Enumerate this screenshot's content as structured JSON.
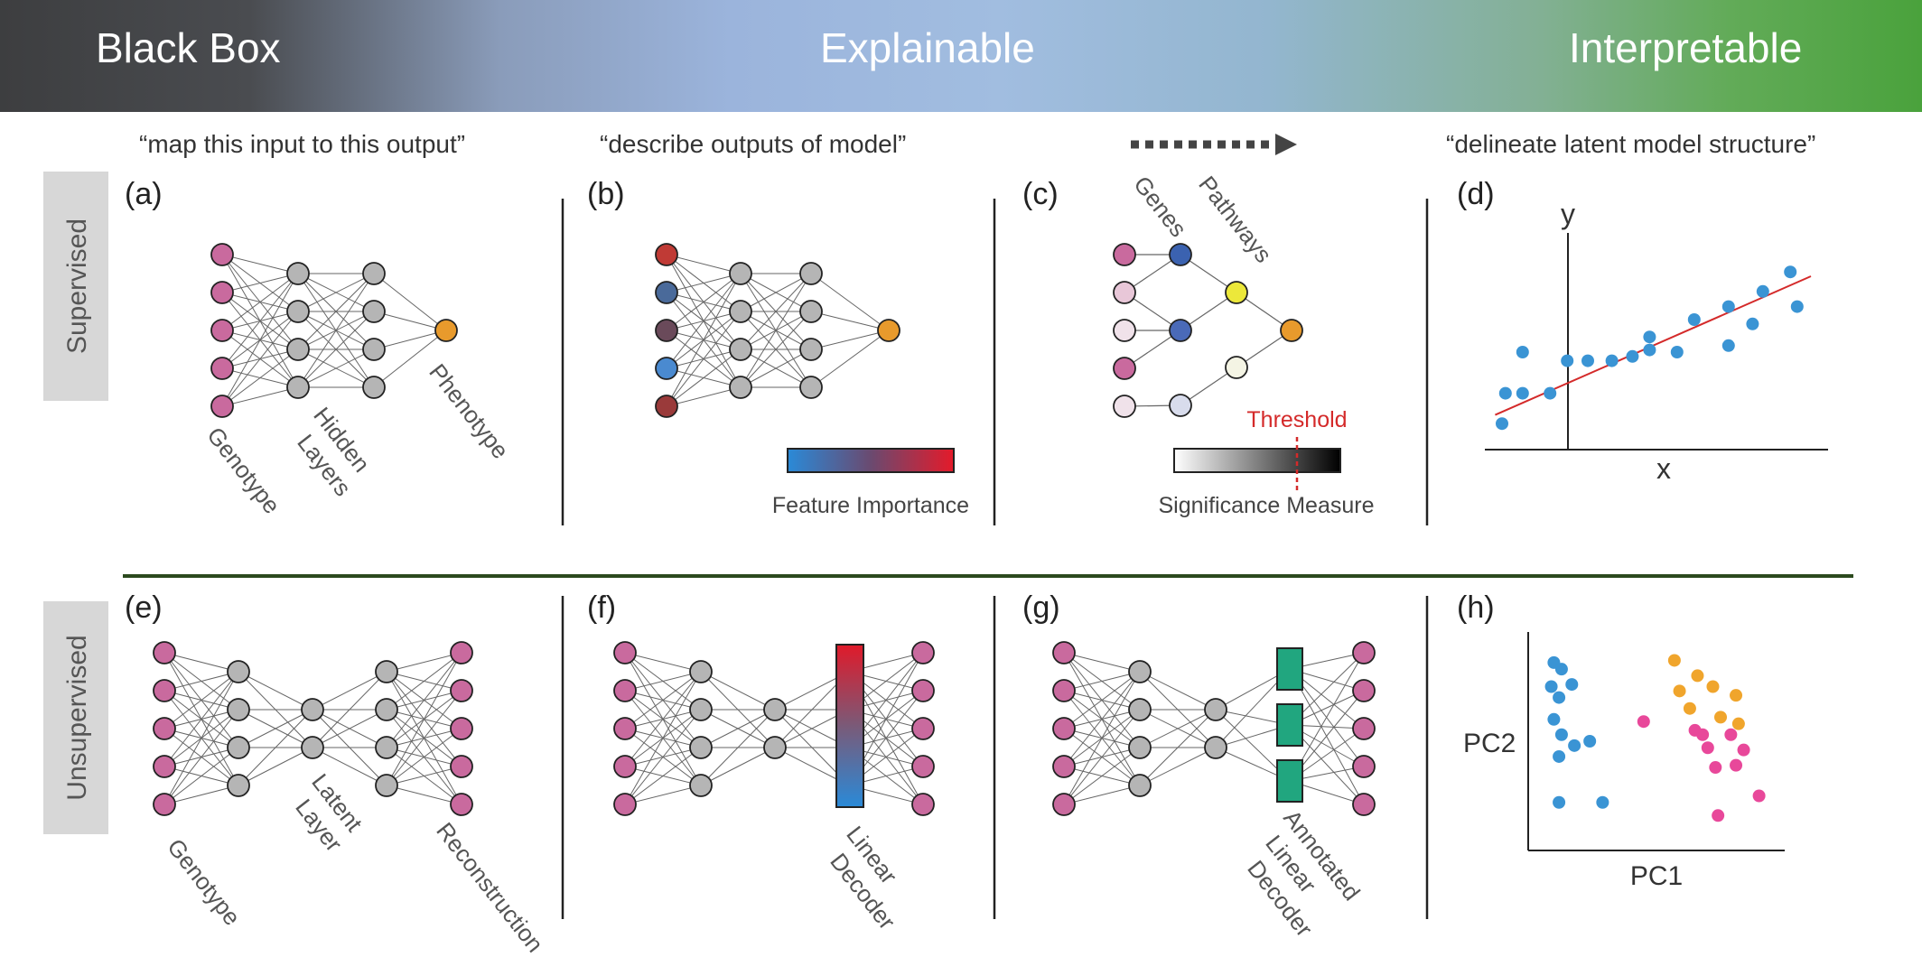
{
  "banner": {
    "left": "Black Box",
    "middle": "Explainable",
    "right": "Interpretable"
  },
  "quotes": {
    "a": "“map this input to this output”",
    "b": "“describe outputs of model”",
    "d": "“delineate latent model structure”"
  },
  "rows": {
    "supervised": "Supervised",
    "unsupervised": "Unsupervised"
  },
  "panels": {
    "a": {
      "letter": "(a)",
      "genotype": "Genotype",
      "hidden1": "Hidden",
      "hidden2": "Layers",
      "phenotype": "Phenotype"
    },
    "b": {
      "letter": "(b)",
      "colorbar_label": "Feature Importance"
    },
    "c": {
      "letter": "(c)",
      "genes": "Genes",
      "pathways": "Pathways",
      "threshold": "Threshold",
      "colorbar_label": "Significance Measure"
    },
    "d": {
      "letter": "(d)",
      "xlabel": "x",
      "ylabel": "y"
    },
    "e": {
      "letter": "(e)",
      "genotype": "Genotype",
      "latent1": "Latent",
      "latent2": "Layer",
      "reconstruction": "Reconstruction"
    },
    "f": {
      "letter": "(f)",
      "dec1": "Linear",
      "dec2": "Decoder"
    },
    "g": {
      "letter": "(g)",
      "dec1": "Annotated",
      "dec2": "Linear",
      "dec3": "Decoder"
    },
    "h": {
      "letter": "(h)",
      "xlabel": "PC1",
      "ylabel": "PC2"
    }
  },
  "colors": {
    "input_node": "#c96a9e",
    "hidden_node": "#b5b5b5",
    "output_node": "#e89a2c",
    "blue_point": "#3a94d4",
    "orange_point": "#f0a52c",
    "pink_point": "#e8489a",
    "regression_line": "#d42a2a",
    "annotated_block": "#21a67f",
    "divider_green": "#2b4a1e",
    "feature_importance": [
      "#d5d5d5",
      "#3b6fb3",
      "#6e4a5a",
      "#4a8fd0",
      "#9e3a3a"
    ],
    "feature_input_nodes": [
      "#c03a35",
      "#4a6a9a",
      "#6a4a5a",
      "#4a8ad0",
      "#9a3a3a"
    ],
    "gene_nodes": [
      "#c96a9e",
      "#e8c7d8",
      "#f0e2ea",
      "#c96a9e",
      "#f0e2ea"
    ],
    "pathway_nodes": [
      "#3b62b0",
      "#4a6ab8",
      "#d8dcec"
    ],
    "pathway_level2": [
      "#ece83a",
      "#f4f4e4"
    ]
  },
  "chart_data": [
    {
      "type": "scatter",
      "panel": "d",
      "xlabel": "x",
      "ylabel": "y",
      "xlim": [
        0,
        10
      ],
      "ylim": [
        0,
        10
      ],
      "points": [
        [
          0.5,
          1.2
        ],
        [
          0.6,
          2.6
        ],
        [
          1.1,
          2.6
        ],
        [
          1.1,
          4.5
        ],
        [
          1.9,
          2.6
        ],
        [
          2.4,
          4.1
        ],
        [
          3.0,
          4.1
        ],
        [
          3.7,
          4.1
        ],
        [
          4.3,
          4.3
        ],
        [
          4.8,
          4.6
        ],
        [
          4.8,
          5.2
        ],
        [
          5.6,
          4.5
        ],
        [
          6.1,
          6.0
        ],
        [
          7.1,
          4.8
        ],
        [
          7.1,
          6.6
        ],
        [
          7.8,
          5.8
        ],
        [
          8.1,
          7.3
        ],
        [
          8.9,
          8.2
        ],
        [
          9.1,
          6.6
        ]
      ],
      "fit_line": [
        [
          0.3,
          1.6
        ],
        [
          9.5,
          8.0
        ]
      ]
    },
    {
      "type": "scatter",
      "panel": "h",
      "xlabel": "PC1",
      "ylabel": "PC2",
      "xlim": [
        0,
        10
      ],
      "ylim": [
        0,
        10
      ],
      "series": [
        {
          "color": "blue",
          "points": [
            [
              1.0,
              8.6
            ],
            [
              1.3,
              8.3
            ],
            [
              0.9,
              7.5
            ],
            [
              1.2,
              7.0
            ],
            [
              1.7,
              7.6
            ],
            [
              1.0,
              6.0
            ],
            [
              1.3,
              5.3
            ],
            [
              1.8,
              4.8
            ],
            [
              1.2,
              4.3
            ],
            [
              2.4,
              5.0
            ],
            [
              1.2,
              2.2
            ],
            [
              2.9,
              2.2
            ]
          ]
        },
        {
          "color": "orange",
          "points": [
            [
              5.7,
              8.7
            ],
            [
              6.6,
              8.0
            ],
            [
              5.9,
              7.3
            ],
            [
              7.2,
              7.5
            ],
            [
              8.1,
              7.1
            ],
            [
              6.3,
              6.5
            ],
            [
              7.5,
              6.1
            ],
            [
              8.2,
              5.8
            ]
          ]
        },
        {
          "color": "pink",
          "points": [
            [
              4.5,
              5.9
            ],
            [
              6.5,
              5.5
            ],
            [
              7.0,
              4.7
            ],
            [
              6.8,
              5.3
            ],
            [
              7.9,
              5.3
            ],
            [
              8.4,
              4.6
            ],
            [
              7.3,
              3.8
            ],
            [
              8.1,
              3.9
            ],
            [
              9.0,
              2.5
            ],
            [
              7.4,
              1.6
            ]
          ]
        }
      ]
    }
  ]
}
